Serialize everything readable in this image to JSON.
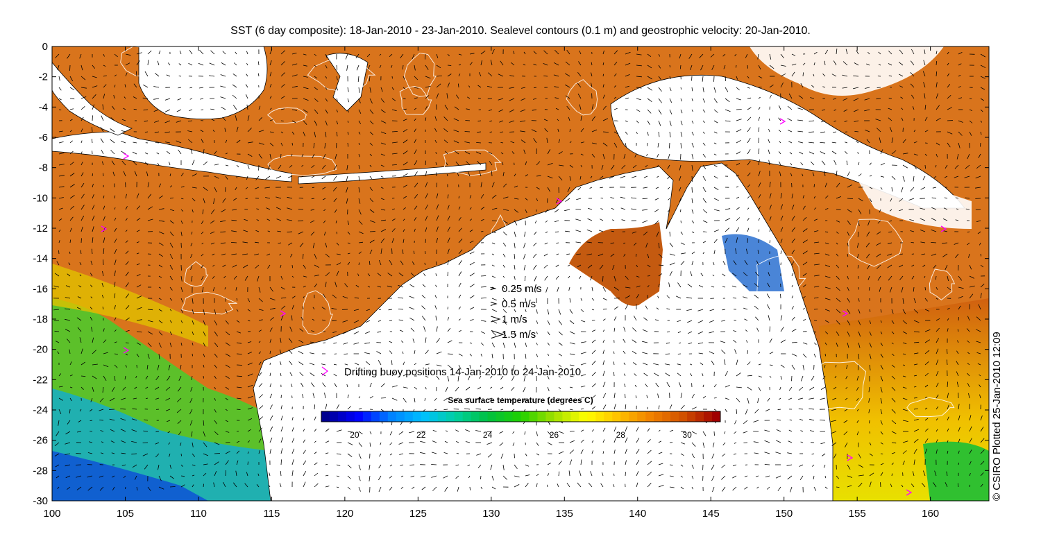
{
  "title": "SST (6 day composite): 18-Jan-2010 - 23-Jan-2010. Sealevel contours (0.1 m) and geostrophic velocity: 20-Jan-2010.",
  "credit": "© CSIRO Plotted 25-Jan-2010 12:09",
  "axes": {
    "lon_range": [
      100,
      164
    ],
    "lat_range": [
      -30,
      0
    ],
    "x_ticks": [
      "100",
      "105",
      "110",
      "115",
      "120",
      "125",
      "130",
      "135",
      "140",
      "145",
      "150",
      "155",
      "160"
    ],
    "y_ticks": [
      "0",
      "-2",
      "-4",
      "-6",
      "-8",
      "-10",
      "-12",
      "-14",
      "-16",
      "-18",
      "-20",
      "-22",
      "-24",
      "-26",
      "-28",
      "-30"
    ]
  },
  "velocity_legend": [
    {
      "label": "0.25 m/s",
      "speed": 0.25
    },
    {
      "label": "0.5 m/s",
      "speed": 0.5
    },
    {
      "label": "1 m/s",
      "speed": 1
    },
    {
      "label": "1.5 m/s",
      "speed": 1.5
    }
  ],
  "buoy_legend": {
    "label": "Drifting buoy positions 14-Jan-2010 to 24-Jan-2010",
    "color": "#ff00ff"
  },
  "colorbar": {
    "title": "Sea surface temperature (degrees C)",
    "range": [
      19,
      31
    ],
    "ticks": [
      "20",
      "22",
      "24",
      "26",
      "28",
      "30"
    ],
    "colors": [
      "#00008f",
      "#0000ff",
      "#0080ff",
      "#00c0ff",
      "#00d0a0",
      "#00c040",
      "#20d000",
      "#a0e000",
      "#ffff00",
      "#ffc000",
      "#f08000",
      "#d05000",
      "#a00000"
    ]
  },
  "colors": {
    "land": "#ffffff",
    "warm_sst": "#d2691e",
    "cool_sst": "#2aa02a",
    "coastline": "#000000",
    "contour": "#ffffff"
  }
}
